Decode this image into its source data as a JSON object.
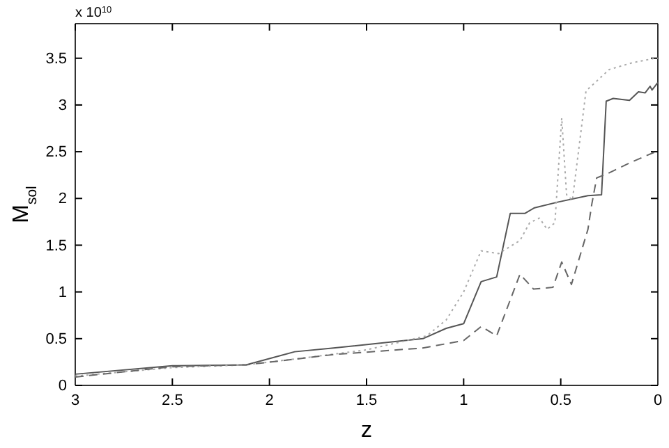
{
  "chart_data": {
    "type": "line",
    "xlabel": "z",
    "ylabel": "M$_{sol}$",
    "annotations": [
      "x 10$^{10}$"
    ],
    "xlim": [
      3,
      0
    ],
    "ylim": [
      0,
      3.87
    ],
    "xticks": [
      {
        "value": 3,
        "label": "3"
      },
      2.5,
      2,
      1.5,
      1,
      0.5,
      0
    ],
    "yticks": [
      0,
      0.5,
      1,
      1.5,
      2,
      2.5,
      3,
      3.5
    ],
    "grid": false,
    "series": [
      {
        "color": "#555555",
        "line_style": "solid",
        "x": [
          3,
          2.5,
          2.12,
          1.87,
          1.67,
          1.21,
          1.09,
          1.0,
          0.91,
          0.83,
          0.76,
          0.685,
          0.635,
          0.517,
          0.36,
          0.29,
          0.266,
          0.23,
          0.146,
          0.1,
          0.065,
          0.04,
          0.03,
          0
        ],
        "values": [
          0.12,
          0.21,
          0.22,
          0.36,
          0.4,
          0.5,
          0.61,
          0.66,
          1.11,
          1.16,
          1.84,
          1.84,
          1.9,
          1.96,
          2.03,
          2.04,
          3.04,
          3.07,
          3.05,
          3.14,
          3.13,
          3.2,
          3.16,
          3.24
        ]
      },
      {
        "color": "#aaaaaa",
        "line_style": "dotted",
        "x": [
          3,
          2.5,
          2.12,
          1.8,
          1.5,
          1.19,
          1.09,
          1.0,
          0.91,
          0.82,
          0.71,
          0.66,
          0.61,
          0.57,
          0.53,
          0.495,
          0.47,
          0.44,
          0.37,
          0.25,
          0.135,
          0.015,
          0
        ],
        "values": [
          0.1,
          0.19,
          0.22,
          0.3,
          0.38,
          0.53,
          0.7,
          1.0,
          1.44,
          1.41,
          1.55,
          1.74,
          1.79,
          1.67,
          1.74,
          2.86,
          2.04,
          1.98,
          3.15,
          3.38,
          3.45,
          3.5,
          3.5
        ]
      },
      {
        "color": "#666666",
        "line_style": "dashed",
        "x": [
          3,
          2.5,
          2.12,
          1.87,
          1.67,
          1.21,
          1.0,
          0.91,
          0.83,
          0.71,
          0.64,
          0.54,
          0.495,
          0.445,
          0.36,
          0.34,
          0.315,
          0.255,
          0.135,
          0
        ],
        "values": [
          0.09,
          0.2,
          0.22,
          0.28,
          0.33,
          0.4,
          0.48,
          0.63,
          0.53,
          1.19,
          1.03,
          1.05,
          1.32,
          1.08,
          1.67,
          1.94,
          2.22,
          2.27,
          2.39,
          2.51
        ]
      }
    ]
  }
}
